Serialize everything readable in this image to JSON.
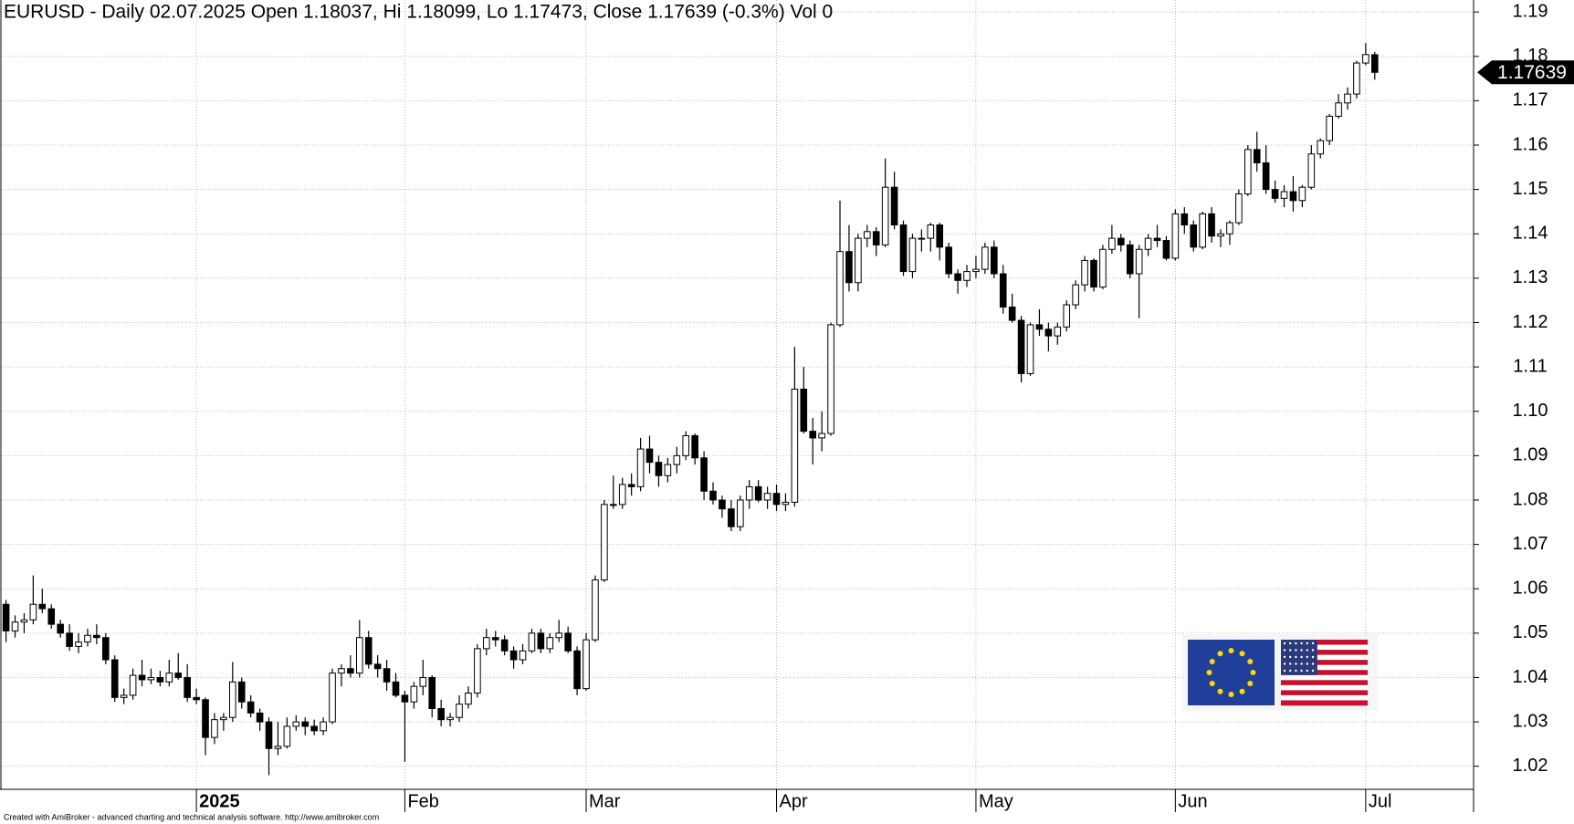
{
  "chart_data": {
    "type": "candlestick",
    "title": "EURUSD - Daily 02.07.2025 Open 1.18037, Hi 1.18099, Lo 1.17473, Close 1.17639 (-0.3%) Vol 0",
    "footer": "Created with AmiBroker - advanced charting and technical analysis software. http://www.amibroker.com",
    "x": [
      null,
      null,
      null,
      null,
      null,
      null,
      null,
      null,
      null,
      null,
      null,
      null,
      null,
      null,
      null,
      null,
      null,
      null,
      null,
      null,
      null,
      "2025",
      null,
      null,
      null,
      null,
      null,
      null,
      null,
      null,
      null,
      null,
      null,
      null,
      null,
      null,
      null,
      null,
      null,
      null,
      null,
      null,
      null,
      null,
      "Feb",
      null,
      null,
      null,
      null,
      null,
      null,
      null,
      null,
      null,
      null,
      null,
      null,
      null,
      null,
      null,
      null,
      null,
      null,
      null,
      "Mar",
      null,
      null,
      null,
      null,
      null,
      null,
      null,
      null,
      null,
      null,
      null,
      null,
      null,
      null,
      null,
      null,
      null,
      null,
      null,
      null,
      "Apr",
      null,
      null,
      null,
      null,
      null,
      null,
      null,
      null,
      null,
      null,
      null,
      null,
      null,
      null,
      null,
      null,
      null,
      null,
      null,
      null,
      null,
      "May",
      null,
      null,
      null,
      null,
      null,
      null,
      null,
      null,
      null,
      null,
      null,
      null,
      null,
      null,
      null,
      null,
      null,
      null,
      null,
      null,
      null,
      "Jun",
      null,
      null,
      null,
      null,
      null,
      null,
      null,
      null,
      null,
      null,
      null,
      null,
      null,
      null,
      null,
      null,
      null,
      null,
      null,
      null,
      "Jul",
      null
    ],
    "open": [
      1.0565,
      1.0505,
      1.0525,
      1.053,
      1.0565,
      1.0555,
      1.052,
      1.05,
      1.047,
      1.048,
      1.0495,
      1.049,
      1.044,
      1.0355,
      1.036,
      1.0405,
      1.0395,
      1.04,
      1.039,
      1.041,
      1.04,
      1.0355,
      1.035,
      1.0265,
      1.0305,
      1.031,
      1.039,
      1.0345,
      1.032,
      1.03,
      1.024,
      1.0245,
      1.029,
      1.03,
      1.029,
      1.028,
      1.03,
      1.041,
      1.042,
      1.041,
      1.049,
      1.043,
      1.042,
      1.039,
      1.036,
      1.0345,
      1.038,
      1.04,
      1.033,
      1.0305,
      1.031,
      1.034,
      1.0365,
      1.0465,
      1.049,
      1.0485,
      1.046,
      1.044,
      1.046,
      1.05,
      1.0465,
      1.049,
      1.05,
      1.046,
      1.0375,
      1.0485,
      1.062,
      1.079,
      1.079,
      1.0835,
      1.083,
      1.0915,
      1.0885,
      1.0855,
      1.088,
      1.09,
      1.0945,
      1.0895,
      1.082,
      1.08,
      1.078,
      1.074,
      1.08,
      1.083,
      1.08,
      1.0815,
      1.079,
      1.0795,
      1.105,
      1.0955,
      1.094,
      1.095,
      1.1195,
      1.136,
      1.129,
      1.139,
      1.1405,
      1.1375,
      1.1505,
      1.142,
      1.1315,
      1.139,
      1.139,
      1.142,
      1.137,
      1.131,
      1.1295,
      1.1315,
      1.132,
      1.137,
      1.131,
      1.1235,
      1.1205,
      1.1085,
      1.1195,
      1.1185,
      1.117,
      1.119,
      1.124,
      1.1285,
      1.134,
      1.128,
      1.1365,
      1.139,
      1.1375,
      1.131,
      1.1365,
      1.139,
      1.1385,
      1.1345,
      1.1445,
      1.142,
      1.137,
      1.1445,
      1.1395,
      1.14,
      1.1425,
      1.149,
      1.159,
      1.156,
      1.15,
      1.148,
      1.1495,
      1.1475,
      1.1505,
      1.158,
      1.161,
      1.1665,
      1.1695,
      1.1715,
      1.1785,
      1.18037
    ],
    "high": [
      1.0575,
      1.054,
      1.0545,
      1.063,
      1.06,
      1.0565,
      1.053,
      1.052,
      1.05,
      1.051,
      1.052,
      1.05,
      1.045,
      1.0375,
      1.042,
      1.044,
      1.042,
      1.0415,
      1.044,
      1.0455,
      1.043,
      1.0375,
      1.0355,
      1.032,
      1.032,
      1.0435,
      1.04,
      1.036,
      1.033,
      1.031,
      1.03,
      1.031,
      1.0315,
      1.031,
      1.0305,
      1.031,
      1.042,
      1.043,
      1.045,
      1.053,
      1.0505,
      1.045,
      1.044,
      1.041,
      1.037,
      1.039,
      1.044,
      1.0405,
      1.035,
      1.032,
      1.036,
      1.038,
      1.0475,
      1.051,
      1.0505,
      1.0495,
      1.047,
      1.0475,
      1.051,
      1.051,
      1.05,
      1.053,
      1.0515,
      1.047,
      1.05,
      1.063,
      1.08,
      1.0855,
      1.085,
      1.086,
      1.094,
      1.0945,
      1.09,
      1.0895,
      1.092,
      1.0955,
      1.095,
      1.091,
      1.084,
      1.081,
      1.08,
      1.081,
      1.0845,
      1.0845,
      1.083,
      1.0835,
      1.0815,
      1.1145,
      1.11,
      1.0985,
      1.1,
      1.12,
      1.1475,
      1.142,
      1.14,
      1.142,
      1.1415,
      1.157,
      1.154,
      1.143,
      1.14,
      1.141,
      1.1425,
      1.1425,
      1.138,
      1.132,
      1.133,
      1.135,
      1.138,
      1.1385,
      1.133,
      1.1265,
      1.1215,
      1.12,
      1.123,
      1.12,
      1.12,
      1.125,
      1.1295,
      1.135,
      1.1345,
      1.1375,
      1.142,
      1.14,
      1.1385,
      1.1375,
      1.14,
      1.142,
      1.1395,
      1.1455,
      1.146,
      1.143,
      1.145,
      1.146,
      1.141,
      1.143,
      1.15,
      1.16,
      1.163,
      1.16,
      1.152,
      1.151,
      1.153,
      1.151,
      1.16,
      1.1615,
      1.167,
      1.1715,
      1.173,
      1.179,
      1.183,
      1.18099
    ],
    "low": [
      1.048,
      1.049,
      1.05,
      1.052,
      1.0545,
      1.051,
      1.049,
      1.046,
      1.0455,
      1.047,
      1.0475,
      1.043,
      1.0345,
      1.034,
      1.035,
      1.038,
      1.0385,
      1.038,
      1.038,
      1.0395,
      1.0345,
      1.034,
      1.0225,
      1.025,
      1.028,
      1.03,
      1.033,
      1.031,
      1.028,
      1.018,
      1.0225,
      1.024,
      1.028,
      1.027,
      1.027,
      1.027,
      1.0295,
      1.038,
      1.04,
      1.04,
      1.042,
      1.04,
      1.037,
      1.0355,
      1.021,
      1.033,
      1.036,
      1.031,
      1.029,
      1.029,
      1.03,
      1.033,
      1.0355,
      1.045,
      1.047,
      1.045,
      1.042,
      1.043,
      1.0455,
      1.0455,
      1.0455,
      1.048,
      1.0455,
      1.036,
      1.037,
      1.048,
      1.0615,
      1.078,
      1.078,
      1.081,
      1.082,
      1.086,
      1.083,
      1.084,
      1.086,
      1.089,
      1.088,
      1.08,
      1.079,
      1.076,
      1.073,
      1.073,
      1.078,
      1.0795,
      1.078,
      1.0775,
      1.0775,
      1.0785,
      1.095,
      1.088,
      1.091,
      1.0945,
      1.119,
      1.127,
      1.127,
      1.137,
      1.135,
      1.137,
      1.141,
      1.1305,
      1.13,
      1.136,
      1.136,
      1.134,
      1.13,
      1.1265,
      1.128,
      1.13,
      1.131,
      1.13,
      1.122,
      1.12,
      1.1065,
      1.108,
      1.117,
      1.1135,
      1.115,
      1.118,
      1.123,
      1.127,
      1.127,
      1.1275,
      1.1355,
      1.136,
      1.13,
      1.121,
      1.135,
      1.137,
      1.134,
      1.134,
      1.14,
      1.136,
      1.1365,
      1.138,
      1.137,
      1.1375,
      1.142,
      1.1485,
      1.154,
      1.149,
      1.147,
      1.146,
      1.145,
      1.146,
      1.15,
      1.157,
      1.16,
      1.166,
      1.168,
      1.1705,
      1.178,
      1.17473
    ],
    "close": [
      1.0505,
      1.0525,
      1.053,
      1.0565,
      1.0555,
      1.052,
      1.05,
      1.047,
      1.048,
      1.0495,
      1.049,
      1.044,
      1.0355,
      1.036,
      1.0405,
      1.0395,
      1.04,
      1.039,
      1.041,
      1.04,
      1.0355,
      1.035,
      1.0265,
      1.0305,
      1.031,
      1.039,
      1.0345,
      1.032,
      1.03,
      1.024,
      1.0245,
      1.029,
      1.03,
      1.029,
      1.028,
      1.03,
      1.041,
      1.042,
      1.041,
      1.049,
      1.043,
      1.042,
      1.039,
      1.036,
      1.0345,
      1.038,
      1.04,
      1.033,
      1.0305,
      1.031,
      1.034,
      1.0365,
      1.0465,
      1.049,
      1.0485,
      1.046,
      1.044,
      1.046,
      1.05,
      1.0465,
      1.049,
      1.05,
      1.046,
      1.0375,
      1.0485,
      1.062,
      1.079,
      1.079,
      1.0835,
      1.083,
      1.0915,
      1.0885,
      1.0855,
      1.088,
      1.09,
      1.0945,
      1.0895,
      1.082,
      1.08,
      1.078,
      1.074,
      1.08,
      1.083,
      1.08,
      1.0815,
      1.079,
      1.0795,
      1.105,
      1.0955,
      1.094,
      1.095,
      1.1195,
      1.136,
      1.129,
      1.139,
      1.1405,
      1.1375,
      1.1505,
      1.142,
      1.1315,
      1.139,
      1.139,
      1.142,
      1.137,
      1.131,
      1.1295,
      1.1315,
      1.132,
      1.137,
      1.131,
      1.1235,
      1.1205,
      1.1085,
      1.1195,
      1.1185,
      1.117,
      1.119,
      1.124,
      1.1285,
      1.134,
      1.128,
      1.1365,
      1.139,
      1.1375,
      1.131,
      1.1365,
      1.139,
      1.1385,
      1.1345,
      1.1445,
      1.142,
      1.137,
      1.1445,
      1.1395,
      1.14,
      1.1425,
      1.149,
      1.159,
      1.156,
      1.15,
      1.148,
      1.1495,
      1.1475,
      1.1505,
      1.158,
      1.161,
      1.1665,
      1.1695,
      1.1715,
      1.1785,
      1.1804,
      1.17639
    ],
    "ylim": [
      1.0148,
      1.1927
    ],
    "yticks": [
      1.02,
      1.03,
      1.04,
      1.05,
      1.06,
      1.07,
      1.08,
      1.09,
      {
        "value": 1.1,
        "label": "1.10"
      },
      1.11,
      1.12,
      1.13,
      1.14,
      1.15,
      1.16,
      1.17,
      1.18,
      1.19
    ],
    "grid": true,
    "up_color": "#ffffff",
    "down_color": "#000000"
  }
}
